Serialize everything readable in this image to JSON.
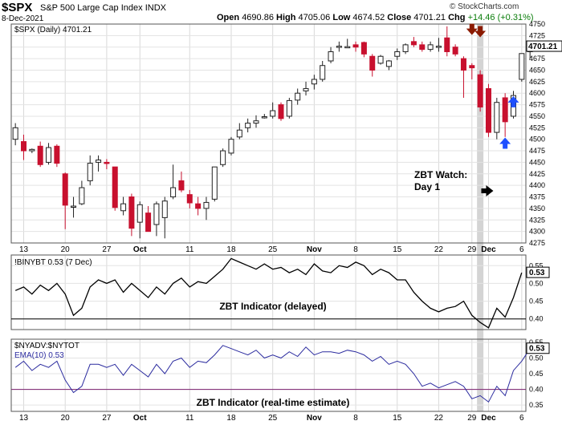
{
  "header": {
    "symbol": "$SPX",
    "name": "S&P 500 Large Cap Index",
    "exchange": "INDX",
    "date": "8-Dec-2021",
    "open_label": "Open",
    "open": "4690.86",
    "high_label": "High",
    "high": "4705.06",
    "low_label": "Low",
    "low": "4674.52",
    "close_label": "Close",
    "close": "4701.21",
    "chg_label": "Chg",
    "chg": "+14.46 (+0.31%)",
    "copyright": "© StockCharts.com"
  },
  "chart_data": [
    {
      "type": "candlestick",
      "legend": "$SPX (Daily) 4701.21",
      "last_value_badge": "4701.21",
      "ylim": [
        4275,
        4750
      ],
      "yticks": [
        4275,
        4300,
        4325,
        4350,
        4375,
        4400,
        4425,
        4450,
        4475,
        4500,
        4525,
        4550,
        4575,
        4600,
        4625,
        4650,
        4675,
        4700,
        4725,
        4750
      ],
      "x_labels": [
        {
          "label": "13",
          "index": 1
        },
        {
          "label": "20",
          "index": 6
        },
        {
          "label": "27",
          "index": 11
        },
        {
          "label": "Oct",
          "index": 15
        },
        {
          "label": "11",
          "index": 21
        },
        {
          "label": "18",
          "index": 26
        },
        {
          "label": "25",
          "index": 31
        },
        {
          "label": "Nov",
          "index": 36
        },
        {
          "label": "8",
          "index": 41
        },
        {
          "label": "15",
          "index": 46
        },
        {
          "label": "22",
          "index": 51
        },
        {
          "label": "29",
          "index": 55
        },
        {
          "label": "Dec",
          "index": 57
        },
        {
          "label": "6",
          "index": 61
        }
      ],
      "candles": [
        {
          "o": 4500,
          "h": 4535,
          "l": 4487,
          "c": 4525
        },
        {
          "o": 4495,
          "h": 4510,
          "l": 4455,
          "c": 4475
        },
        {
          "o": 4475,
          "h": 4480,
          "l": 4470,
          "c": 4478
        },
        {
          "o": 4485,
          "h": 4495,
          "l": 4440,
          "c": 4445
        },
        {
          "o": 4450,
          "h": 4492,
          "l": 4445,
          "c": 4482
        },
        {
          "o": 4485,
          "h": 4489,
          "l": 4440,
          "c": 4448
        },
        {
          "o": 4425,
          "h": 4428,
          "l": 4305,
          "c": 4357
        },
        {
          "o": 4355,
          "h": 4375,
          "l": 4330,
          "c": 4355
        },
        {
          "o": 4360,
          "h": 4410,
          "l": 4357,
          "c": 4395
        },
        {
          "o": 4410,
          "h": 4465,
          "l": 4400,
          "c": 4448
        },
        {
          "o": 4450,
          "h": 4465,
          "l": 4430,
          "c": 4455
        },
        {
          "o": 4450,
          "h": 4457,
          "l": 4435,
          "c": 4448
        },
        {
          "o": 4440,
          "h": 4440,
          "l": 4345,
          "c": 4352
        },
        {
          "o": 4345,
          "h": 4375,
          "l": 4335,
          "c": 4360
        },
        {
          "o": 4375,
          "h": 4382,
          "l": 4290,
          "c": 4307
        },
        {
          "o": 4320,
          "h": 4365,
          "l": 4285,
          "c": 4358
        },
        {
          "o": 4340,
          "h": 4355,
          "l": 4300,
          "c": 4300
        },
        {
          "o": 4315,
          "h": 4365,
          "l": 4290,
          "c": 4360
        },
        {
          "o": 4330,
          "h": 4375,
          "l": 4285,
          "c": 4366
        },
        {
          "o": 4375,
          "h": 4445,
          "l": 4370,
          "c": 4395
        },
        {
          "o": 4410,
          "h": 4430,
          "l": 4385,
          "c": 4390
        },
        {
          "o": 4380,
          "h": 4390,
          "l": 4350,
          "c": 4362
        },
        {
          "o": 4360,
          "h": 4375,
          "l": 4335,
          "c": 4350
        },
        {
          "o": 4350,
          "h": 4375,
          "l": 4325,
          "c": 4363
        },
        {
          "o": 4370,
          "h": 4440,
          "l": 4365,
          "c": 4440
        },
        {
          "o": 4445,
          "h": 4480,
          "l": 4440,
          "c": 4475
        },
        {
          "o": 4470,
          "h": 4505,
          "l": 4465,
          "c": 4500
        },
        {
          "o": 4505,
          "h": 4535,
          "l": 4500,
          "c": 4520
        },
        {
          "o": 4525,
          "h": 4545,
          "l": 4515,
          "c": 4535
        },
        {
          "o": 4535,
          "h": 4552,
          "l": 4525,
          "c": 4540
        },
        {
          "o": 4548,
          "h": 4555,
          "l": 4545,
          "c": 4549
        },
        {
          "o": 4550,
          "h": 4580,
          "l": 4545,
          "c": 4562
        },
        {
          "o": 4575,
          "h": 4580,
          "l": 4540,
          "c": 4545
        },
        {
          "o": 4550,
          "h": 4590,
          "l": 4545,
          "c": 4584
        },
        {
          "o": 4585,
          "h": 4610,
          "l": 4575,
          "c": 4600
        },
        {
          "o": 4605,
          "h": 4625,
          "l": 4595,
          "c": 4610
        },
        {
          "o": 4620,
          "h": 4640,
          "l": 4608,
          "c": 4630
        },
        {
          "o": 4630,
          "h": 4670,
          "l": 4625,
          "c": 4660
        },
        {
          "o": 4670,
          "h": 4700,
          "l": 4665,
          "c": 4690
        },
        {
          "o": 4700,
          "h": 4712,
          "l": 4690,
          "c": 4702
        },
        {
          "o": 4700,
          "h": 4718,
          "l": 4698,
          "c": 4701
        },
        {
          "o": 4705,
          "h": 4712,
          "l": 4690,
          "c": 4700
        },
        {
          "o": 4710,
          "h": 4712,
          "l": 4678,
          "c": 4685
        },
        {
          "o": 4680,
          "h": 4685,
          "l": 4636,
          "c": 4650
        },
        {
          "o": 4665,
          "h": 4683,
          "l": 4662,
          "c": 4680
        },
        {
          "o": 4658,
          "h": 4672,
          "l": 4650,
          "c": 4670
        },
        {
          "o": 4680,
          "h": 4697,
          "l": 4672,
          "c": 4690
        },
        {
          "o": 4690,
          "h": 4708,
          "l": 4685,
          "c": 4705
        },
        {
          "o": 4712,
          "h": 4722,
          "l": 4700,
          "c": 4705
        },
        {
          "o": 4705,
          "h": 4712,
          "l": 4690,
          "c": 4695
        },
        {
          "o": 4695,
          "h": 4712,
          "l": 4690,
          "c": 4705
        },
        {
          "o": 4700,
          "h": 4720,
          "l": 4690,
          "c": 4702
        },
        {
          "o": 4720,
          "h": 4745,
          "l": 4680,
          "c": 4690
        },
        {
          "o": 4700,
          "h": 4706,
          "l": 4680,
          "c": 4685
        },
        {
          "o": 4675,
          "h": 4680,
          "l": 4590,
          "c": 4650
        },
        {
          "o": 4660,
          "h": 4665,
          "l": 4630,
          "c": 4655
        },
        {
          "o": 4640,
          "h": 4650,
          "l": 4560,
          "c": 4570
        },
        {
          "o": 4610,
          "h": 4620,
          "l": 4505,
          "c": 4515
        },
        {
          "o": 4515,
          "h": 4590,
          "l": 4500,
          "c": 4580
        },
        {
          "o": 4590,
          "h": 4600,
          "l": 4505,
          "c": 4538
        },
        {
          "o": 4550,
          "h": 4605,
          "l": 4545,
          "c": 4595
        },
        {
          "o": 4630,
          "h": 4685,
          "l": 4625,
          "c": 4686
        },
        {
          "o": 4690,
          "h": 4705,
          "l": 4675,
          "c": 4701
        }
      ],
      "annotations": {
        "watch_text_1": "ZBT Watch:",
        "watch_text_2": "Day 1",
        "arrows": [
          {
            "type": "down",
            "color": "#8b1a00",
            "index": 55,
            "value": 4735
          },
          {
            "type": "down",
            "color": "#8b1a00",
            "index": 56,
            "value": 4730
          },
          {
            "type": "up",
            "color": "#1e4fff",
            "index": 59,
            "value": 4495
          },
          {
            "type": "up",
            "color": "#1e4fff",
            "index": 60,
            "value": 4585
          },
          {
            "type": "right",
            "color": "#000000",
            "index": 57,
            "value": 4388
          }
        ],
        "highlight_index": 56
      }
    },
    {
      "type": "line",
      "legend": "!BINYBT 0.53 (7 Dec)",
      "badge": "0.53",
      "ylim": [
        0.37,
        0.58
      ],
      "yticks": [
        0.4,
        0.45,
        0.5,
        0.55
      ],
      "hline": 0.4,
      "caption": "ZBT Indicator (delayed)",
      "color": "#000000",
      "values": [
        0.48,
        0.49,
        0.47,
        0.495,
        0.48,
        0.5,
        0.47,
        0.41,
        0.43,
        0.49,
        0.51,
        0.5,
        0.51,
        0.475,
        0.5,
        0.48,
        0.46,
        0.49,
        0.47,
        0.5,
        0.515,
        0.49,
        0.505,
        0.5,
        0.52,
        0.54,
        0.57,
        0.56,
        0.55,
        0.54,
        0.555,
        0.54,
        0.545,
        0.53,
        0.54,
        0.525,
        0.555,
        0.535,
        0.53,
        0.55,
        0.545,
        0.56,
        0.55,
        0.525,
        0.54,
        0.53,
        0.51,
        0.51,
        0.475,
        0.45,
        0.43,
        0.42,
        0.43,
        0.435,
        0.45,
        0.41,
        0.39,
        0.375,
        0.43,
        0.405,
        0.46,
        0.53
      ]
    },
    {
      "type": "line",
      "legend_1": "$NYADV:$NYTOT",
      "legend_2": "EMA(10) 0.53",
      "badge": "0.53",
      "ylim": [
        0.33,
        0.56
      ],
      "yticks": [
        0.35,
        0.4,
        0.45,
        0.5,
        0.55
      ],
      "hline": 0.4,
      "caption": "ZBT Indicator (real-time estimate)",
      "color": "#2b2b9f",
      "hline_color": "#7a1f6e",
      "values": [
        0.47,
        0.49,
        0.46,
        0.48,
        0.47,
        0.49,
        0.43,
        0.39,
        0.41,
        0.48,
        0.48,
        0.47,
        0.48,
        0.445,
        0.48,
        0.46,
        0.44,
        0.48,
        0.45,
        0.49,
        0.5,
        0.47,
        0.49,
        0.485,
        0.51,
        0.54,
        0.53,
        0.52,
        0.51,
        0.525,
        0.5,
        0.51,
        0.5,
        0.52,
        0.505,
        0.535,
        0.51,
        0.52,
        0.52,
        0.515,
        0.525,
        0.52,
        0.51,
        0.49,
        0.505,
        0.48,
        0.49,
        0.48,
        0.45,
        0.41,
        0.42,
        0.405,
        0.415,
        0.425,
        0.41,
        0.37,
        0.38,
        0.36,
        0.41,
        0.38,
        0.46,
        0.49,
        0.53
      ]
    }
  ]
}
